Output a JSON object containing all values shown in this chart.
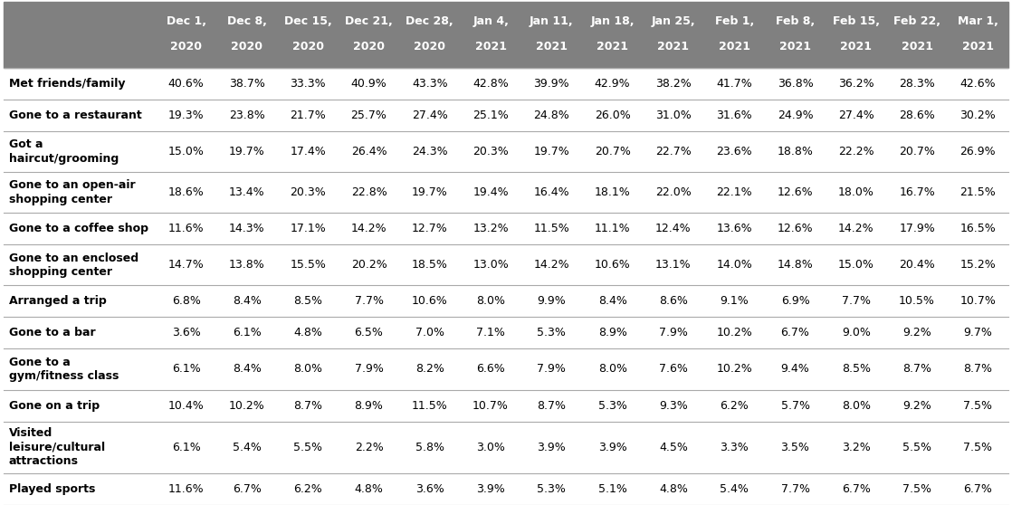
{
  "columns": [
    "Dec 1,\n2020",
    "Dec 8,\n2020",
    "Dec 15,\n2020",
    "Dec 21,\n2020",
    "Dec 28,\n2020",
    "Jan 4,\n2021",
    "Jan 11,\n2021",
    "Jan 18,\n2021",
    "Jan 25,\n2021",
    "Feb 1,\n2021",
    "Feb 8,\n2021",
    "Feb 15,\n2021",
    "Feb 22,\n2021",
    "Mar 1,\n2021"
  ],
  "rows": [
    {
      "label": "Met friends/family",
      "values": [
        "40.6%",
        "38.7%",
        "33.3%",
        "40.9%",
        "43.3%",
        "42.8%",
        "39.9%",
        "42.9%",
        "38.2%",
        "41.7%",
        "36.8%",
        "36.2%",
        "28.3%",
        "42.6%"
      ],
      "nlines": 1
    },
    {
      "label": "Gone to a restaurant",
      "values": [
        "19.3%",
        "23.8%",
        "21.7%",
        "25.7%",
        "27.4%",
        "25.1%",
        "24.8%",
        "26.0%",
        "31.0%",
        "31.6%",
        "24.9%",
        "27.4%",
        "28.6%",
        "30.2%"
      ],
      "nlines": 1
    },
    {
      "label": "Got a\nhaircut/grooming",
      "values": [
        "15.0%",
        "19.7%",
        "17.4%",
        "26.4%",
        "24.3%",
        "20.3%",
        "19.7%",
        "20.7%",
        "22.7%",
        "23.6%",
        "18.8%",
        "22.2%",
        "20.7%",
        "26.9%"
      ],
      "nlines": 2
    },
    {
      "label": "Gone to an open-air\nshopping center",
      "values": [
        "18.6%",
        "13.4%",
        "20.3%",
        "22.8%",
        "19.7%",
        "19.4%",
        "16.4%",
        "18.1%",
        "22.0%",
        "22.1%",
        "12.6%",
        "18.0%",
        "16.7%",
        "21.5%"
      ],
      "nlines": 2
    },
    {
      "label": "Gone to a coffee shop",
      "values": [
        "11.6%",
        "14.3%",
        "17.1%",
        "14.2%",
        "12.7%",
        "13.2%",
        "11.5%",
        "11.1%",
        "12.4%",
        "13.6%",
        "12.6%",
        "14.2%",
        "17.9%",
        "16.5%"
      ],
      "nlines": 1
    },
    {
      "label": "Gone to an enclosed\nshopping center",
      "values": [
        "14.7%",
        "13.8%",
        "15.5%",
        "20.2%",
        "18.5%",
        "13.0%",
        "14.2%",
        "10.6%",
        "13.1%",
        "14.0%",
        "14.8%",
        "15.0%",
        "20.4%",
        "15.2%"
      ],
      "nlines": 2
    },
    {
      "label": "Arranged a trip",
      "values": [
        "6.8%",
        "8.4%",
        "8.5%",
        "7.7%",
        "10.6%",
        "8.0%",
        "9.9%",
        "8.4%",
        "8.6%",
        "9.1%",
        "6.9%",
        "7.7%",
        "10.5%",
        "10.7%"
      ],
      "nlines": 1
    },
    {
      "label": "Gone to a bar",
      "values": [
        "3.6%",
        "6.1%",
        "4.8%",
        "6.5%",
        "7.0%",
        "7.1%",
        "5.3%",
        "8.9%",
        "7.9%",
        "10.2%",
        "6.7%",
        "9.0%",
        "9.2%",
        "9.7%"
      ],
      "nlines": 1
    },
    {
      "label": "Gone to a\ngym/fitness class",
      "values": [
        "6.1%",
        "8.4%",
        "8.0%",
        "7.9%",
        "8.2%",
        "6.6%",
        "7.9%",
        "8.0%",
        "7.6%",
        "10.2%",
        "9.4%",
        "8.5%",
        "8.7%",
        "8.7%"
      ],
      "nlines": 2
    },
    {
      "label": "Gone on a trip",
      "values": [
        "10.4%",
        "10.2%",
        "8.7%",
        "8.9%",
        "11.5%",
        "10.7%",
        "8.7%",
        "5.3%",
        "9.3%",
        "6.2%",
        "5.7%",
        "8.0%",
        "9.2%",
        "7.5%"
      ],
      "nlines": 1
    },
    {
      "label": "Visited\nleisure/cultural\nattractions",
      "values": [
        "6.1%",
        "5.4%",
        "5.5%",
        "2.2%",
        "5.8%",
        "3.0%",
        "3.9%",
        "3.9%",
        "4.5%",
        "3.3%",
        "3.5%",
        "3.2%",
        "5.5%",
        "7.5%"
      ],
      "nlines": 3
    },
    {
      "label": "Played sports",
      "values": [
        "11.6%",
        "6.7%",
        "6.2%",
        "4.8%",
        "3.6%",
        "3.9%",
        "5.3%",
        "5.1%",
        "4.8%",
        "5.4%",
        "7.7%",
        "6.7%",
        "7.5%",
        "6.7%"
      ],
      "nlines": 1
    }
  ],
  "header_bg": "#808080",
  "header_fg": "#ffffff",
  "cell_text_color": "#000000",
  "label_text_color": "#000000",
  "header_fontsize": 9,
  "cell_fontsize": 9,
  "label_fontsize": 9,
  "line_color": "#aaaaaa",
  "fig_width": 11.18,
  "fig_height": 5.58,
  "dpi": 100
}
